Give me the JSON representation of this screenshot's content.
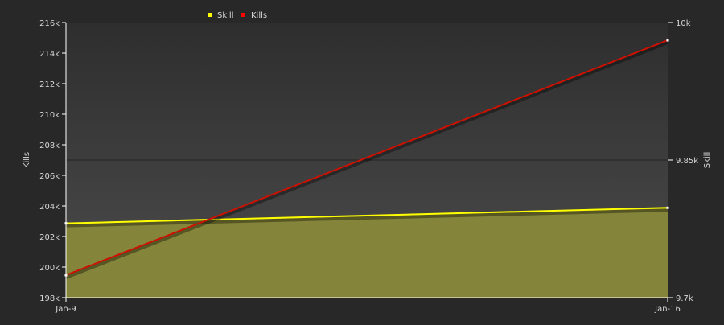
{
  "chart_data": {
    "type": "line",
    "categories": [
      "Jan-9",
      "Jan-16"
    ],
    "x_tick_labels": [
      "Jan-9",
      "Jan-16"
    ],
    "series": [
      {
        "name": "Skill",
        "axis": "right",
        "values": [
          9781,
          9798
        ],
        "color": "#ffff00",
        "fill": "#84843a",
        "area": true
      },
      {
        "name": "Kills",
        "axis": "left",
        "values": [
          199470,
          214840
        ],
        "color": "#cc1100"
      }
    ],
    "left_axis": {
      "label": "Kills",
      "range": [
        198000,
        216000
      ],
      "ticks": [
        "198k",
        "200k",
        "202k",
        "204k",
        "206k",
        "208k",
        "210k",
        "212k",
        "214k",
        "216k"
      ]
    },
    "right_axis": {
      "label": "Skill",
      "range": [
        9700,
        10000
      ],
      "ticks": [
        "9.7k",
        "9.85k",
        "10k"
      ]
    },
    "legend": {
      "placement": "top",
      "items": [
        "Skill",
        "Kills"
      ]
    },
    "grid": true
  }
}
